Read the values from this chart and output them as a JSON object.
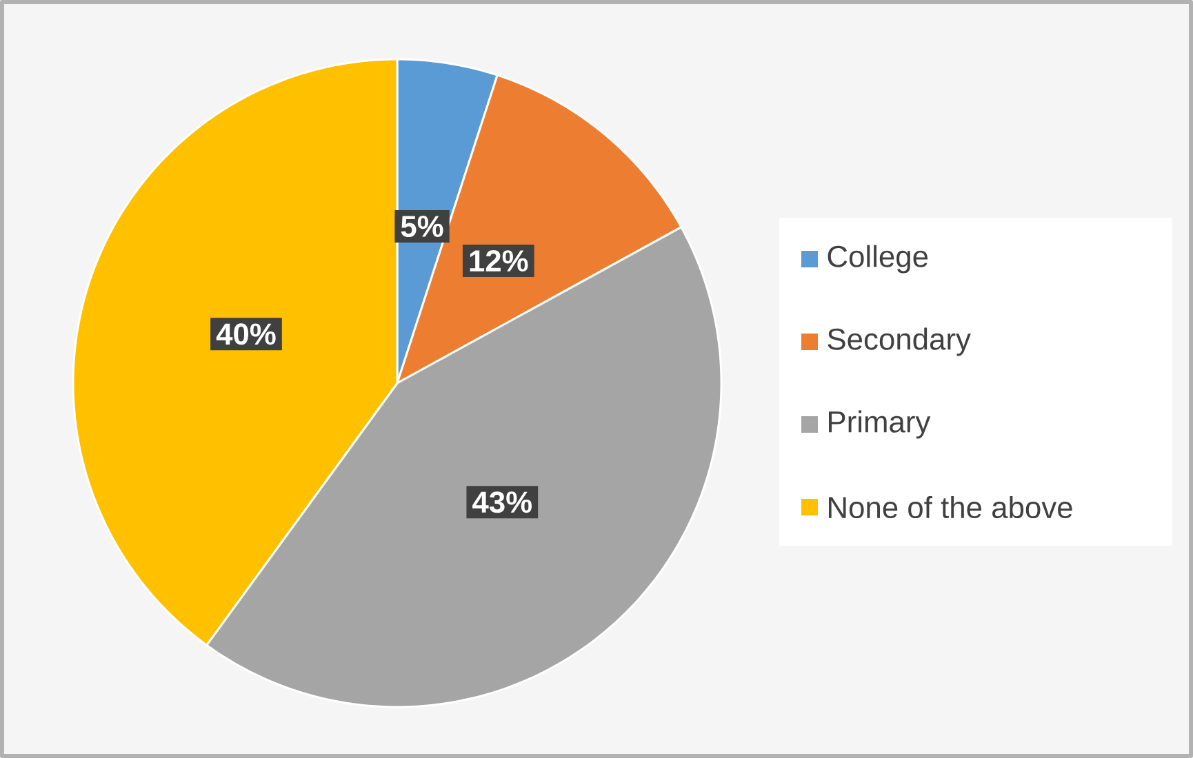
{
  "chart_data": {
    "type": "pie",
    "categories": [
      "College",
      "Secondary",
      "Primary",
      "None of the above"
    ],
    "values": [
      5,
      12,
      43,
      40
    ],
    "colors": [
      "#5b9bd5",
      "#ed7d31",
      "#a5a5a5",
      "#ffc000"
    ],
    "value_labels": [
      "5%",
      "12%",
      "43%",
      "40%"
    ],
    "legend": "right"
  }
}
